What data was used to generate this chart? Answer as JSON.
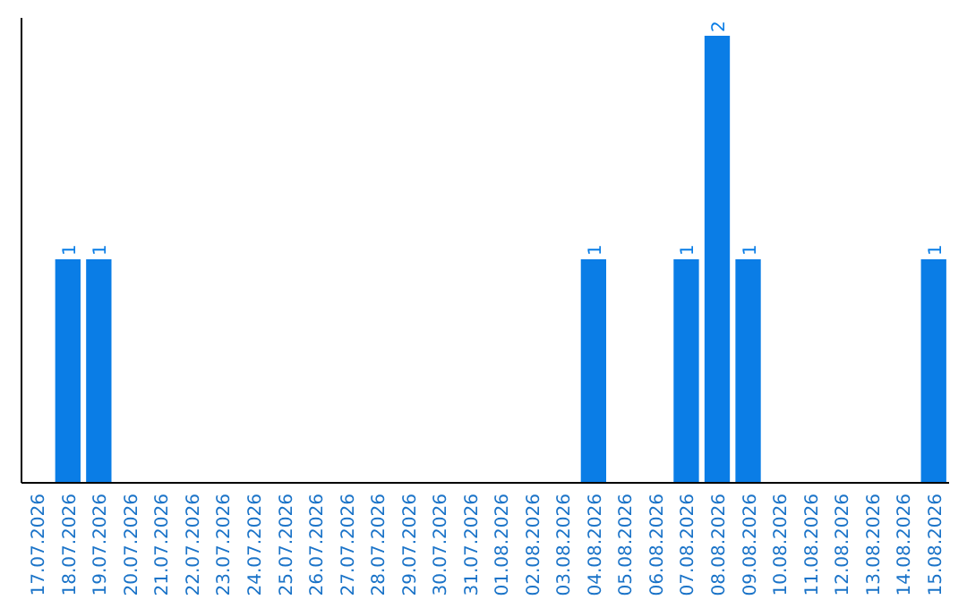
{
  "chart_data": {
    "type": "bar",
    "categories": [
      "17.07.2026",
      "18.07.2026",
      "19.07.2026",
      "20.07.2026",
      "21.07.2026",
      "22.07.2026",
      "23.07.2026",
      "24.07.2026",
      "25.07.2026",
      "26.07.2026",
      "27.07.2026",
      "28.07.2026",
      "29.07.2026",
      "30.07.2026",
      "31.07.2026",
      "01.08.2026",
      "02.08.2026",
      "03.08.2026",
      "04.08.2026",
      "05.08.2026",
      "06.08.2026",
      "07.08.2026",
      "08.08.2026",
      "09.08.2026",
      "10.08.2026",
      "11.08.2026",
      "12.08.2026",
      "13.08.2026",
      "14.08.2026",
      "15.08.2026"
    ],
    "values": [
      0,
      1,
      1,
      0,
      0,
      0,
      0,
      0,
      0,
      0,
      0,
      0,
      0,
      0,
      0,
      0,
      0,
      0,
      1,
      0,
      0,
      1,
      2,
      1,
      0,
      0,
      0,
      0,
      0,
      1
    ],
    "value_labels": [
      null,
      "1",
      "1",
      null,
      null,
      null,
      null,
      null,
      null,
      null,
      null,
      null,
      null,
      null,
      null,
      null,
      null,
      null,
      "1",
      null,
      null,
      "1",
      "2",
      "1",
      null,
      null,
      null,
      null,
      null,
      "1"
    ],
    "color": "#0a7de6",
    "tick_labels": "x"
  }
}
